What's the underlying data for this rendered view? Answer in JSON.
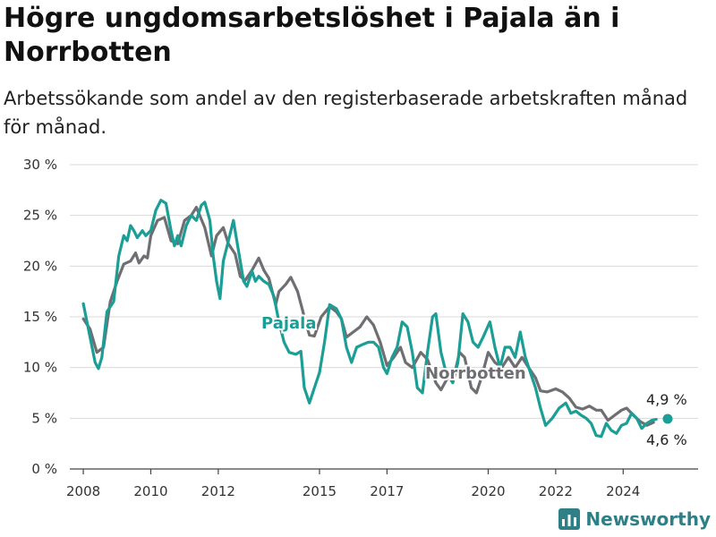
{
  "title": "Högre ungdomsarbetslöshet i Pajala än i Norrbotten",
  "subtitle": "Arbetssökande som andel av den registerbaserade arbetskraften månad för månad.",
  "brand": "Newsworthy",
  "chart_data": {
    "type": "line",
    "ylim": [
      0,
      30
    ],
    "y_ticks": [
      0,
      5,
      10,
      15,
      20,
      25,
      30
    ],
    "y_tick_labels": [
      "0 %",
      "5 %",
      "10 %",
      "15 %",
      "20 %",
      "25 %",
      "30 %"
    ],
    "x_ticks": [
      2008,
      2010,
      2012,
      2015,
      2017,
      2020,
      2022,
      2024
    ],
    "x_tick_labels": [
      "2008",
      "2010",
      "2012",
      "2015",
      "2017",
      "2020",
      "2022",
      "2024"
    ],
    "grid": true,
    "end_labels": {
      "pajala": "4,9 %",
      "norrbotten": "4,6 %"
    },
    "series": [
      {
        "name": "Norrbotten",
        "color": "#6e6e73",
        "points": [
          [
            2008.0,
            14.8
          ],
          [
            2008.2,
            13.8
          ],
          [
            2008.4,
            11.5
          ],
          [
            2008.6,
            12.0
          ],
          [
            2008.8,
            16.5
          ],
          [
            2009.0,
            18.5
          ],
          [
            2009.2,
            20.2
          ],
          [
            2009.4,
            20.5
          ],
          [
            2009.55,
            21.3
          ],
          [
            2009.65,
            20.3
          ],
          [
            2009.8,
            21.0
          ],
          [
            2009.9,
            20.8
          ],
          [
            2010.0,
            23.0
          ],
          [
            2010.2,
            24.5
          ],
          [
            2010.4,
            24.8
          ],
          [
            2010.6,
            22.5
          ],
          [
            2010.8,
            22.2
          ],
          [
            2011.0,
            24.5
          ],
          [
            2011.2,
            25.0
          ],
          [
            2011.35,
            25.8
          ],
          [
            2011.6,
            23.8
          ],
          [
            2011.8,
            21.0
          ],
          [
            2011.95,
            23.0
          ],
          [
            2012.15,
            23.8
          ],
          [
            2012.3,
            22.2
          ],
          [
            2012.5,
            21.2
          ],
          [
            2012.65,
            19.0
          ],
          [
            2012.8,
            18.6
          ],
          [
            2013.0,
            19.6
          ],
          [
            2013.2,
            20.8
          ],
          [
            2013.35,
            19.6
          ],
          [
            2013.5,
            18.8
          ],
          [
            2013.7,
            16.2
          ],
          [
            2013.8,
            17.5
          ],
          [
            2014.0,
            18.2
          ],
          [
            2014.15,
            18.9
          ],
          [
            2014.35,
            17.5
          ],
          [
            2014.55,
            15.0
          ],
          [
            2014.7,
            13.2
          ],
          [
            2014.85,
            13.1
          ],
          [
            2015.05,
            15.0
          ],
          [
            2015.3,
            16.0
          ],
          [
            2015.5,
            15.5
          ],
          [
            2015.65,
            14.8
          ],
          [
            2015.8,
            13.0
          ],
          [
            2016.0,
            13.5
          ],
          [
            2016.2,
            14.0
          ],
          [
            2016.4,
            15.0
          ],
          [
            2016.6,
            14.2
          ],
          [
            2016.8,
            12.5
          ],
          [
            2017.0,
            10.2
          ],
          [
            2017.2,
            11.0
          ],
          [
            2017.4,
            12.0
          ],
          [
            2017.55,
            10.5
          ],
          [
            2017.75,
            10.0
          ],
          [
            2018.0,
            11.5
          ],
          [
            2018.2,
            10.8
          ],
          [
            2018.45,
            8.5
          ],
          [
            2018.6,
            7.8
          ],
          [
            2018.8,
            9.0
          ],
          [
            2019.0,
            9.3
          ],
          [
            2019.15,
            11.5
          ],
          [
            2019.3,
            11.0
          ],
          [
            2019.5,
            8.0
          ],
          [
            2019.65,
            7.5
          ],
          [
            2019.8,
            9.0
          ],
          [
            2020.0,
            11.5
          ],
          [
            2020.2,
            10.5
          ],
          [
            2020.4,
            10.0
          ],
          [
            2020.6,
            11.0
          ],
          [
            2020.8,
            10.0
          ],
          [
            2021.0,
            11.0
          ],
          [
            2021.2,
            10.0
          ],
          [
            2021.4,
            9.0
          ],
          [
            2021.55,
            7.7
          ],
          [
            2021.75,
            7.6
          ],
          [
            2022.0,
            7.9
          ],
          [
            2022.2,
            7.6
          ],
          [
            2022.4,
            7.0
          ],
          [
            2022.6,
            6.1
          ],
          [
            2022.8,
            5.9
          ],
          [
            2023.0,
            6.2
          ],
          [
            2023.2,
            5.8
          ],
          [
            2023.35,
            5.8
          ],
          [
            2023.55,
            4.8
          ],
          [
            2023.75,
            5.3
          ],
          [
            2023.95,
            5.8
          ],
          [
            2024.1,
            6.0
          ],
          [
            2024.3,
            5.3
          ],
          [
            2024.5,
            4.7
          ],
          [
            2024.7,
            4.3
          ],
          [
            2024.9,
            4.6
          ]
        ]
      },
      {
        "name": "Pajala",
        "color": "#1a9e95",
        "points": [
          [
            2008.0,
            16.3
          ],
          [
            2008.2,
            13.0
          ],
          [
            2008.35,
            10.5
          ],
          [
            2008.45,
            9.9
          ],
          [
            2008.55,
            11.0
          ],
          [
            2008.7,
            15.5
          ],
          [
            2008.9,
            16.5
          ],
          [
            2009.05,
            21.0
          ],
          [
            2009.2,
            23.0
          ],
          [
            2009.3,
            22.5
          ],
          [
            2009.4,
            24.0
          ],
          [
            2009.5,
            23.5
          ],
          [
            2009.6,
            22.8
          ],
          [
            2009.75,
            23.5
          ],
          [
            2009.85,
            23.0
          ],
          [
            2010.0,
            23.5
          ],
          [
            2010.15,
            25.5
          ],
          [
            2010.3,
            26.5
          ],
          [
            2010.45,
            26.2
          ],
          [
            2010.6,
            23.5
          ],
          [
            2010.7,
            22.0
          ],
          [
            2010.8,
            23.0
          ],
          [
            2010.9,
            22.0
          ],
          [
            2011.05,
            24.0
          ],
          [
            2011.2,
            25.0
          ],
          [
            2011.35,
            24.5
          ],
          [
            2011.5,
            26.0
          ],
          [
            2011.6,
            26.3
          ],
          [
            2011.75,
            24.5
          ],
          [
            2011.85,
            21.0
          ],
          [
            2011.95,
            18.5
          ],
          [
            2012.05,
            16.8
          ],
          [
            2012.15,
            20.5
          ],
          [
            2012.3,
            22.5
          ],
          [
            2012.45,
            24.5
          ],
          [
            2012.6,
            21.5
          ],
          [
            2012.75,
            18.5
          ],
          [
            2012.85,
            18.0
          ],
          [
            2013.0,
            19.5
          ],
          [
            2013.1,
            18.5
          ],
          [
            2013.2,
            19.0
          ],
          [
            2013.35,
            18.5
          ],
          [
            2013.5,
            18.2
          ],
          [
            2013.65,
            17.0
          ],
          [
            2013.8,
            14.5
          ],
          [
            2013.95,
            12.5
          ],
          [
            2014.1,
            11.5
          ],
          [
            2014.3,
            11.3
          ],
          [
            2014.45,
            11.6
          ],
          [
            2014.55,
            8.0
          ],
          [
            2014.7,
            6.5
          ],
          [
            2014.85,
            8.0
          ],
          [
            2015.0,
            9.5
          ],
          [
            2015.15,
            12.5
          ],
          [
            2015.3,
            16.2
          ],
          [
            2015.5,
            15.8
          ],
          [
            2015.65,
            14.8
          ],
          [
            2015.8,
            12.0
          ],
          [
            2015.95,
            10.5
          ],
          [
            2016.1,
            12.0
          ],
          [
            2016.3,
            12.3
          ],
          [
            2016.45,
            12.5
          ],
          [
            2016.6,
            12.5
          ],
          [
            2016.75,
            12.0
          ],
          [
            2016.9,
            10.0
          ],
          [
            2017.0,
            9.4
          ],
          [
            2017.15,
            11.0
          ],
          [
            2017.3,
            12.0
          ],
          [
            2017.45,
            14.5
          ],
          [
            2017.6,
            14.0
          ],
          [
            2017.75,
            11.5
          ],
          [
            2017.9,
            8.0
          ],
          [
            2018.05,
            7.5
          ],
          [
            2018.2,
            11.5
          ],
          [
            2018.35,
            15.0
          ],
          [
            2018.45,
            15.3
          ],
          [
            2018.6,
            11.5
          ],
          [
            2018.75,
            9.5
          ],
          [
            2018.95,
            8.5
          ],
          [
            2019.1,
            10.5
          ],
          [
            2019.25,
            15.3
          ],
          [
            2019.4,
            14.5
          ],
          [
            2019.55,
            12.5
          ],
          [
            2019.7,
            12.0
          ],
          [
            2019.85,
            13.0
          ],
          [
            2020.05,
            14.5
          ],
          [
            2020.2,
            12.0
          ],
          [
            2020.35,
            10.0
          ],
          [
            2020.5,
            12.0
          ],
          [
            2020.65,
            12.0
          ],
          [
            2020.8,
            11.0
          ],
          [
            2020.95,
            13.5
          ],
          [
            2021.1,
            11.0
          ],
          [
            2021.25,
            9.5
          ],
          [
            2021.4,
            8.0
          ],
          [
            2021.55,
            6.0
          ],
          [
            2021.7,
            4.3
          ],
          [
            2021.9,
            5.0
          ],
          [
            2022.1,
            6.0
          ],
          [
            2022.3,
            6.5
          ],
          [
            2022.45,
            5.5
          ],
          [
            2022.6,
            5.7
          ],
          [
            2022.75,
            5.3
          ],
          [
            2022.9,
            5.0
          ],
          [
            2023.05,
            4.5
          ],
          [
            2023.2,
            3.3
          ],
          [
            2023.35,
            3.2
          ],
          [
            2023.5,
            4.5
          ],
          [
            2023.65,
            3.8
          ],
          [
            2023.8,
            3.5
          ],
          [
            2023.95,
            4.3
          ],
          [
            2024.1,
            4.5
          ],
          [
            2024.25,
            5.5
          ],
          [
            2024.4,
            5.0
          ],
          [
            2024.55,
            4.0
          ],
          [
            2024.7,
            4.5
          ],
          [
            2024.85,
            4.8
          ],
          [
            2024.98,
            4.9
          ]
        ]
      }
    ]
  }
}
